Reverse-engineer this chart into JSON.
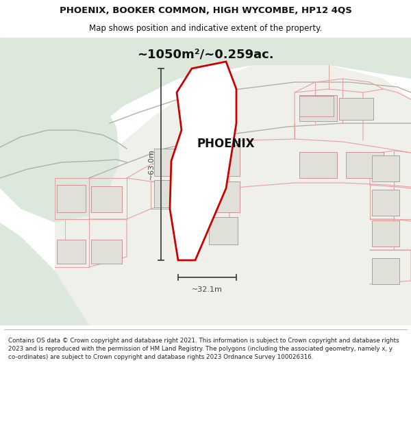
{
  "title_line1": "PHOENIX, BOOKER COMMON, HIGH WYCOMBE, HP12 4QS",
  "title_line2": "Map shows position and indicative extent of the property.",
  "area_label": "~1050m²/~0.259ac.",
  "property_label": "PHOENIX",
  "dim_horizontal": "~32.1m",
  "dim_vertical": "~63.0m",
  "footer_text": "Contains OS data © Crown copyright and database right 2021. This information is subject to Crown copyright and database rights 2023 and is reproduced with the permission of HM Land Registry. The polygons (including the associated geometry, namely x, y co-ordinates) are subject to Crown copyright and database rights 2023 Ordnance Survey 100026316.",
  "bg_green": "#dce8dc",
  "bg_white": "#f0f0eb",
  "road_white": "#f8f8f5",
  "building_fill": "#e0e0d8",
  "building_edge": "#d09090",
  "red_outline": "#cc0000",
  "pink_road": "#e8a0a0",
  "dim_color": "#444444",
  "footer_bg": "#ffffff",
  "title_bg": "#ffffff",
  "area_text_color": "#111111",
  "map_border": "#cccccc"
}
